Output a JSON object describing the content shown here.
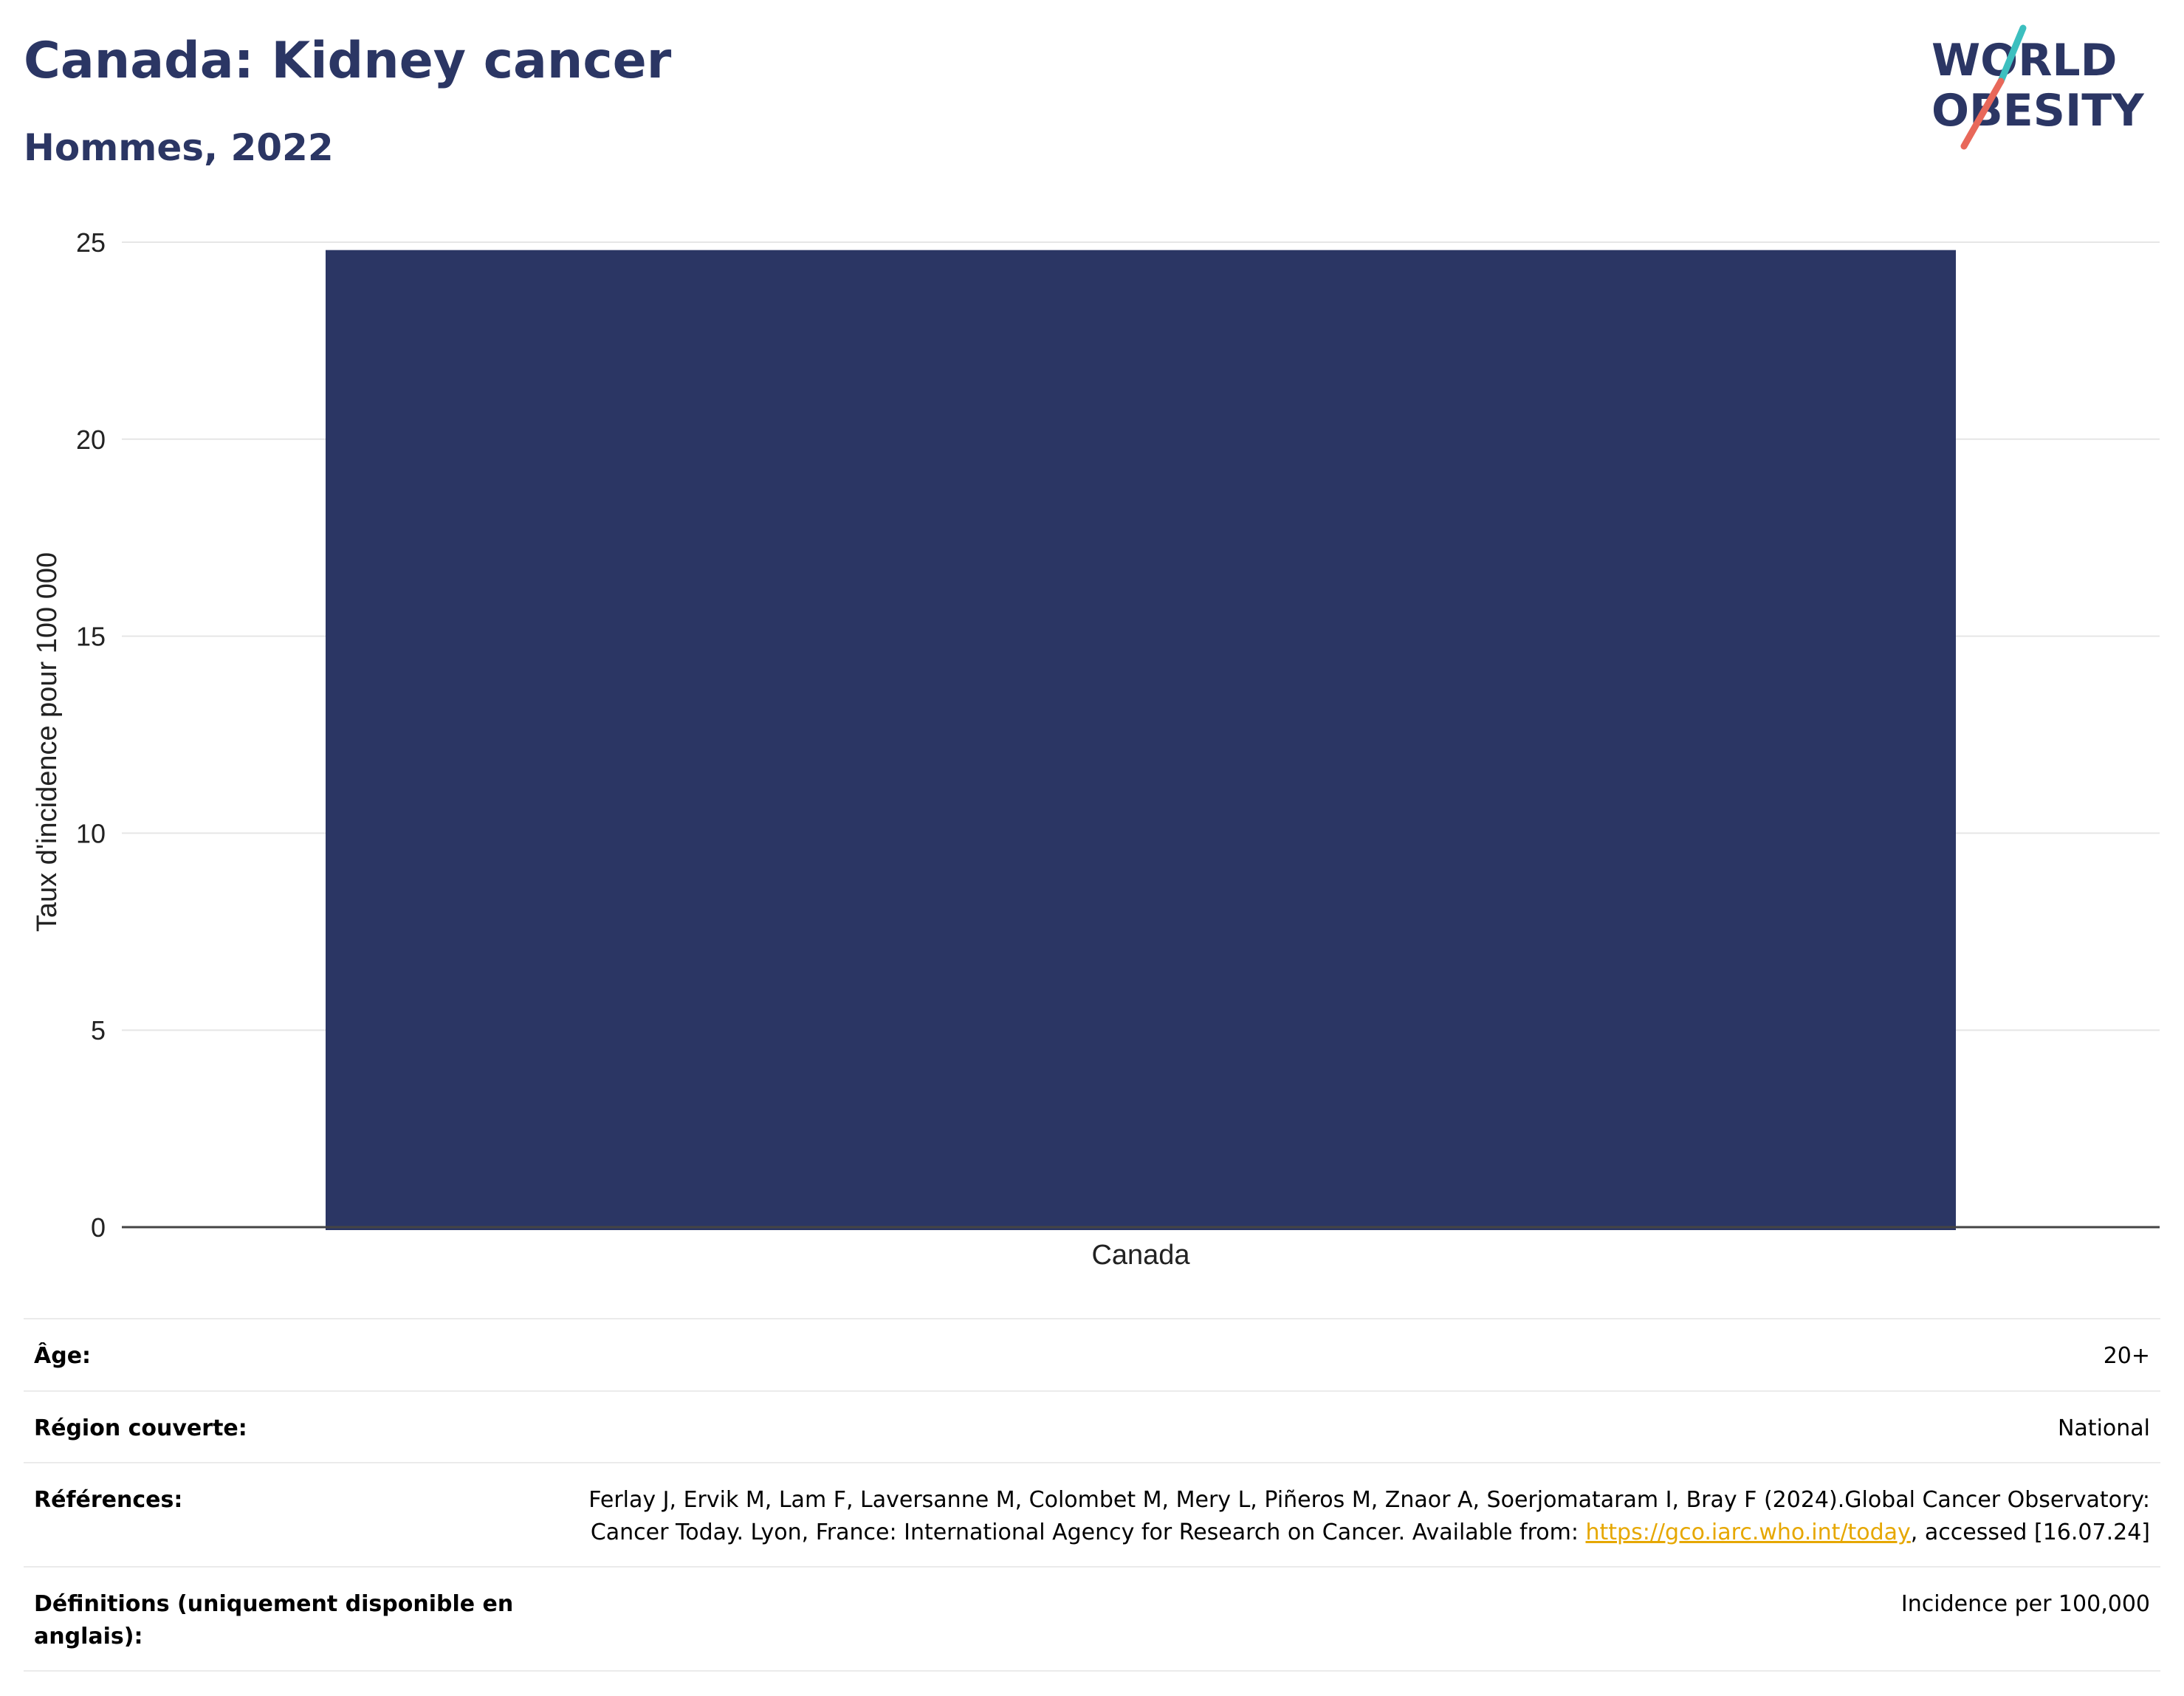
{
  "header": {
    "title": "Canada: Kidney cancer",
    "subtitle": "Hommes, 2022"
  },
  "logo": {
    "line1": "WORLD",
    "line2": "OBESITY",
    "colors": {
      "text": "#2b3664",
      "slash_top": "#3cbfbf",
      "slash_bottom": "#e8685a"
    }
  },
  "chart_data": {
    "type": "bar",
    "categories": [
      "Canada"
    ],
    "values": [
      24.8
    ],
    "ylabel": "Taux d'incidence pour 100 000",
    "xlabel": "",
    "ylim": [
      0,
      25
    ],
    "yticks": [
      0,
      5,
      10,
      15,
      20,
      25
    ],
    "grid": true,
    "bar_color": "#2b3664"
  },
  "metadata": {
    "age": {
      "label": "Âge:",
      "value": "20+"
    },
    "region": {
      "label": "Région couverte:",
      "value": "National"
    },
    "references": {
      "label": "Références:",
      "text_before_link": "Ferlay J, Ervik M, Lam F, Laversanne M, Colombet M, Mery L, Piñeros M, Znaor A, Soerjomataram I, Bray F (2024).Global Cancer Observatory: Cancer Today. Lyon, France: International Agency for Research on Cancer. Available from: ",
      "link_text": "https://gco.iarc.who.int/today",
      "text_after_link": ", accessed [16.07.24]"
    },
    "definitions": {
      "label": "Définitions (uniquement disponible en anglais):",
      "value": "Incidence per 100,000"
    }
  }
}
